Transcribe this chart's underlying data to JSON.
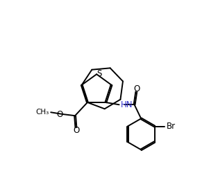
{
  "bg_color": "#ffffff",
  "lc": "#000000",
  "lw": 1.4,
  "figsize": [
    3.14,
    2.76
  ],
  "dpi": 100,
  "xlim": [
    -0.5,
    9.0
  ],
  "ylim": [
    -1.5,
    8.5
  ]
}
